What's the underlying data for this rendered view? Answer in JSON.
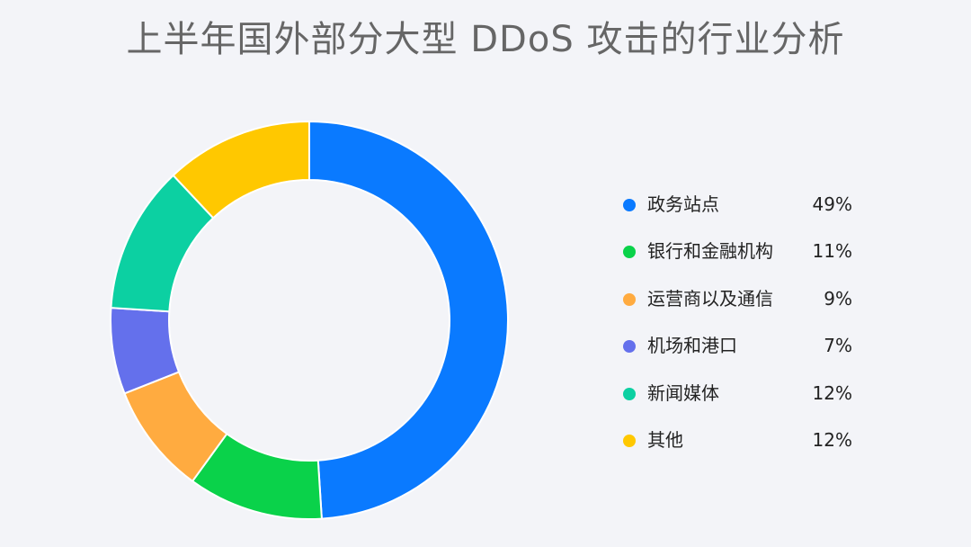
{
  "chart_data": {
    "type": "pie",
    "style": "donut",
    "title": "上半年国外部分大型 DDoS 攻击的行业分析",
    "legend_position": "right",
    "slices": [
      {
        "label": "政务站点",
        "value": 49,
        "display": "49%",
        "color": "#0a7aff"
      },
      {
        "label": "银行和金融机构",
        "value": 11,
        "display": "11%",
        "color": "#0ad24a"
      },
      {
        "label": "运营商以及通信",
        "value": 9,
        "display": "9%",
        "color": "#ffab40"
      },
      {
        "label": "机场和港口",
        "value": 7,
        "display": "7%",
        "color": "#6470ec"
      },
      {
        "label": "新闻媒体",
        "value": 12,
        "display": "12%",
        "color": "#0cd0a2"
      },
      {
        "label": "其他",
        "value": 12,
        "display": "12%",
        "color": "#ffc800"
      }
    ]
  }
}
